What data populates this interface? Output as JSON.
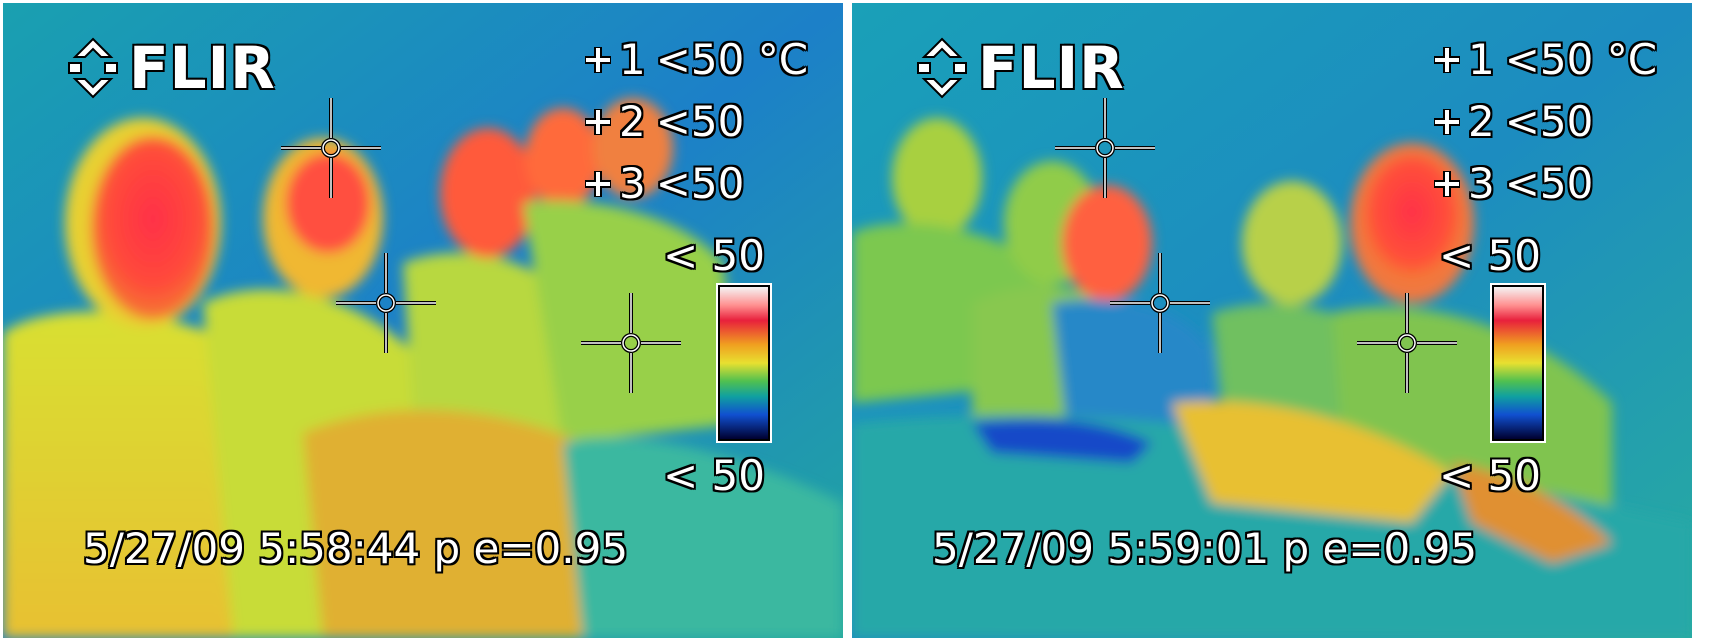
{
  "brand": {
    "name": "FLIR",
    "icon": "flir-diamond-logo-icon"
  },
  "colors": {
    "overlay_text": "#ffffff",
    "overlay_outline": "#000000",
    "thermal_cold": "#0a2a8a",
    "thermal_cool": "#1d9ab5",
    "thermal_mid": "#58c858",
    "thermal_warm": "#e8e030",
    "thermal_hot": "#ff3040"
  },
  "frames": [
    {
      "spots": [
        {
          "id": "1",
          "reading": "<50 °C"
        },
        {
          "id": "2",
          "reading": "<50"
        },
        {
          "id": "3",
          "reading": "<50"
        }
      ],
      "scale_max": "< 50",
      "scale_min": "< 50",
      "timestamp": "5/27/09  5:58:44 p e=0.95"
    },
    {
      "spots": [
        {
          "id": "1",
          "reading": "<50 °C"
        },
        {
          "id": "2",
          "reading": "<50"
        },
        {
          "id": "3",
          "reading": "<50"
        }
      ],
      "scale_max": "< 50",
      "scale_min": "< 50",
      "timestamp": "5/27/09  5:59:01 p e=0.95"
    }
  ]
}
